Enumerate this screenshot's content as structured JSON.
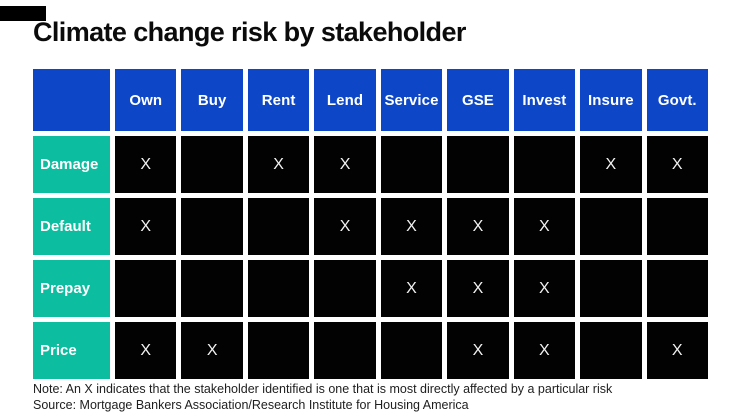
{
  "page": {
    "title": "Climate change risk by stakeholder",
    "note": "Note: An X indicates that the stakeholder identified is one that is most directly affected by a particular risk",
    "source": "Source: Mortgage Bankers Association/Research Institute for Housing America"
  },
  "colors": {
    "header_blue": "#0d47c8",
    "row_label_teal": "#0cbd9f",
    "cell_black": "#020202",
    "cell_text": "#f2f2f2",
    "title_text": "#0b0b0b",
    "logo_mark": "#000000",
    "background": "#ffffff"
  },
  "chart_data": {
    "type": "table",
    "title": "Climate change risk by stakeholder",
    "columns": [
      "Own",
      "Buy",
      "Rent",
      "Lend",
      "Service",
      "GSE",
      "Invest",
      "Insure",
      "Govt."
    ],
    "rows": [
      {
        "label": "Damage",
        "cells": [
          "X",
          "",
          "X",
          "X",
          "",
          "",
          "",
          "X",
          "X"
        ]
      },
      {
        "label": "Default",
        "cells": [
          "X",
          "",
          "",
          "X",
          "X",
          "X",
          "X",
          "",
          ""
        ]
      },
      {
        "label": "Prepay",
        "cells": [
          "",
          "",
          "",
          "",
          "X",
          "X",
          "X",
          "",
          ""
        ]
      },
      {
        "label": "Price",
        "cells": [
          "X",
          "X",
          "",
          "",
          "",
          "X",
          "X",
          "",
          "X"
        ]
      }
    ],
    "legend_note": "X = stakeholder most directly affected by the risk"
  }
}
